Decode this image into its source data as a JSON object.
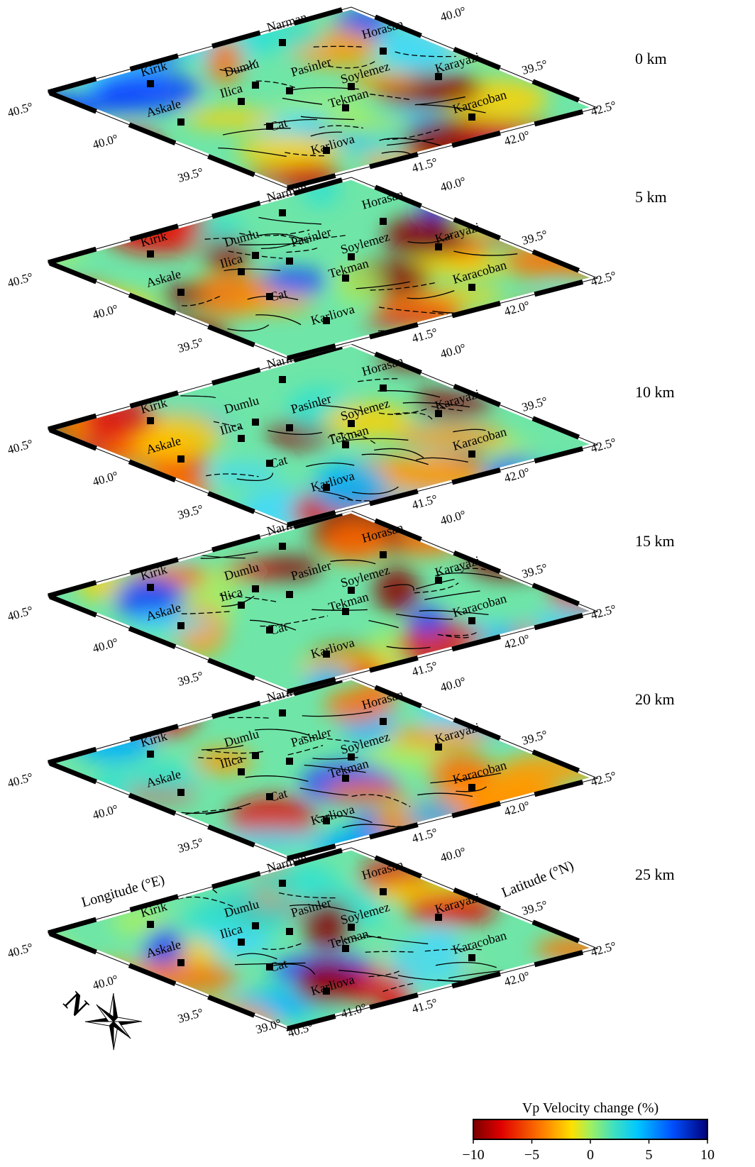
{
  "slices": [
    {
      "depth": "0 km"
    },
    {
      "depth": "5 km"
    },
    {
      "depth": "10 km"
    },
    {
      "depth": "15 km"
    },
    {
      "depth": "20 km"
    },
    {
      "depth": "25 km"
    }
  ],
  "cities": [
    {
      "name": "Narman"
    },
    {
      "name": "Horasan"
    },
    {
      "name": "Kirik"
    },
    {
      "name": "Dumlu"
    },
    {
      "name": "Pasinler"
    },
    {
      "name": "Soylemez"
    },
    {
      "name": "Karayazi"
    },
    {
      "name": "Ilica"
    },
    {
      "name": "Askale"
    },
    {
      "name": "Tekman"
    },
    {
      "name": "Karacoban"
    },
    {
      "name": "Cat"
    },
    {
      "name": "Karliova"
    }
  ],
  "edge_ticks": [
    "40.5°",
    "40.0°",
    "39.5°",
    "41.5°",
    "42.0°",
    "42.5°",
    "40.0°",
    "39.5°"
  ],
  "bottom_ticks": [
    "39.0°",
    "40.5°",
    "41.0°"
  ],
  "axis_labels": {
    "longitude": "Longitude (°E)",
    "latitude": "Latitude (°N)"
  },
  "compass": {
    "label": "N"
  },
  "colorbar": {
    "title": "Vp Velocity change (%)",
    "lim": [
      -10,
      10
    ],
    "ticks": [
      {
        "value": -10,
        "label": "−10"
      },
      {
        "value": -5,
        "label": "−5"
      },
      0,
      5,
      10
    ]
  }
}
